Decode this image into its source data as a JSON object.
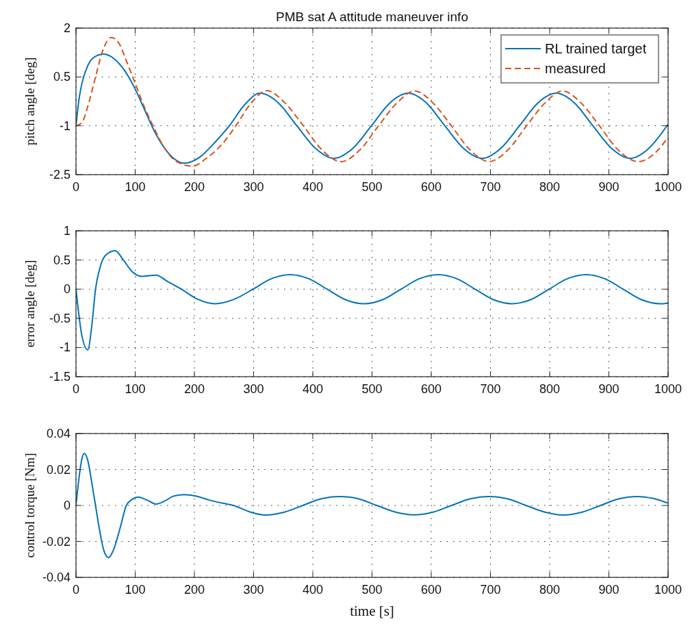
{
  "chart_data": [
    {
      "type": "line",
      "title": "PMB sat A attitude maneuver info",
      "ylabel": "pitch angle [deg]",
      "xlim": [
        0,
        1000
      ],
      "xticks": [
        0,
        100,
        200,
        300,
        400,
        500,
        600,
        700,
        800,
        900,
        1000
      ],
      "ylim": [
        -2.5,
        2
      ],
      "yticks": [
        -2.5,
        -1,
        0.5,
        2
      ],
      "grid": true,
      "legend": "top right",
      "series": [
        {
          "name": "RL trained target",
          "color": "#0072bd",
          "line_style": "solid",
          "x": [
            0,
            5,
            10,
            20,
            30,
            47,
            65,
            80,
            98,
            115,
            132,
            150,
            165,
            183,
            210,
            235,
            259,
            285,
            311,
            342,
            373,
            405,
            436,
            467,
            499,
            530,
            561,
            592,
            623,
            655,
            686,
            717,
            749,
            780,
            811,
            842,
            873,
            905,
            936,
            967,
            1000
          ],
          "values": [
            -1,
            -0.2,
            0.3,
            0.85,
            1.1,
            1.2,
            1.05,
            0.75,
            0.2,
            -0.47,
            -1.15,
            -1.7,
            -2,
            -2.15,
            -1.95,
            -1.5,
            -1,
            -0.35,
            0,
            -0.3,
            -1,
            -1.7,
            -2,
            -1.7,
            -1,
            -0.3,
            0,
            -0.3,
            -1,
            -1.7,
            -2,
            -1.7,
            -1,
            -0.3,
            0,
            -0.3,
            -1,
            -1.7,
            -2,
            -1.7,
            -0.95
          ]
        },
        {
          "name": "measured",
          "color": "#d95319",
          "line_style": "dashed",
          "x": [
            0,
            10,
            20,
            33,
            45,
            60,
            72,
            85,
            100,
            115,
            130,
            150,
            170,
            197,
            220,
            245,
            270,
            296,
            322,
            353,
            384,
            416,
            448,
            479,
            511,
            542,
            572,
            603,
            634,
            666,
            698,
            729,
            761,
            792,
            822,
            853,
            884,
            916,
            950,
            980,
            1000
          ],
          "values": [
            -1,
            -0.9,
            -0.4,
            0.5,
            1.3,
            1.71,
            1.55,
            1,
            0.3,
            -0.4,
            -1,
            -1.7,
            -2.1,
            -2.24,
            -2,
            -1.6,
            -1,
            -0.3,
            0.08,
            -0.3,
            -1,
            -1.75,
            -2.1,
            -1.75,
            -1,
            -0.3,
            0.07,
            -0.3,
            -1,
            -1.75,
            -2.1,
            -1.75,
            -1,
            -0.3,
            0.07,
            -0.3,
            -1,
            -1.75,
            -2.1,
            -1.8,
            -1.35
          ]
        }
      ]
    },
    {
      "type": "line",
      "ylabel": "error angle [deg]",
      "xlim": [
        0,
        1000
      ],
      "xticks": [
        0,
        100,
        200,
        300,
        400,
        500,
        600,
        700,
        800,
        900,
        1000
      ],
      "ylim": [
        -1.5,
        1
      ],
      "yticks": [
        -1.5,
        -1,
        -0.5,
        0,
        0.5,
        1
      ],
      "grid": true,
      "series": [
        {
          "color": "#0072bd",
          "x": [
            0,
            5,
            10,
            20,
            27,
            33,
            40,
            50,
            66,
            80,
            95,
            112,
            135,
            155,
            178,
            205,
            235,
            268,
            299,
            330,
            362,
            393,
            424,
            455,
            487,
            518,
            549,
            580,
            612,
            643,
            674,
            705,
            737,
            768,
            799,
            830,
            862,
            893,
            924,
            955,
            987,
            1000
          ],
          "values": [
            0,
            -0.45,
            -0.8,
            -1.04,
            -0.6,
            0,
            0.35,
            0.58,
            0.66,
            0.5,
            0.3,
            0.22,
            0.24,
            0.13,
            0,
            -0.17,
            -0.25,
            -0.17,
            0,
            0.18,
            0.25,
            0.18,
            0,
            -0.18,
            -0.25,
            -0.18,
            0,
            0.18,
            0.25,
            0.18,
            0,
            -0.18,
            -0.25,
            -0.18,
            0,
            0.18,
            0.25,
            0.18,
            0,
            -0.18,
            -0.25,
            -0.24
          ]
        }
      ]
    },
    {
      "type": "line",
      "ylabel": "control torque [Nm]",
      "xlabel": "time [s]",
      "xlim": [
        0,
        1000
      ],
      "xticks": [
        0,
        100,
        200,
        300,
        400,
        500,
        600,
        700,
        800,
        900,
        1000
      ],
      "ylim": [
        -0.04,
        0.04
      ],
      "yticks": [
        -0.04,
        -0.02,
        0,
        0.02,
        0.04
      ],
      "grid": true,
      "series": [
        {
          "color": "#0072bd",
          "x": [
            0,
            5,
            10,
            14,
            20,
            27,
            33,
            40,
            47,
            55,
            63,
            75,
            85,
            95,
            105,
            120,
            135,
            150,
            165,
            183,
            201,
            225,
            247,
            266,
            293,
            320,
            352,
            383,
            414,
            445,
            477,
            508,
            540,
            571,
            603,
            634,
            666,
            698,
            729,
            760,
            792,
            823,
            855,
            886,
            917,
            948,
            975,
            1000
          ],
          "values": [
            0,
            0.015,
            0.026,
            0.029,
            0.025,
            0.012,
            0,
            -0.014,
            -0.025,
            -0.029,
            -0.025,
            -0.012,
            0,
            0.0035,
            0.0047,
            0.003,
            0.0008,
            0.0025,
            0.0052,
            0.006,
            0.0053,
            0.003,
            0.0013,
            0,
            -0.0035,
            -0.0053,
            -0.0037,
            0,
            0.0037,
            0.005,
            0.0037,
            0,
            -0.0037,
            -0.0052,
            -0.0037,
            0,
            0.0037,
            0.005,
            0.0037,
            0,
            -0.0037,
            -0.0053,
            -0.0037,
            0,
            0.0037,
            0.005,
            0.0039,
            0.0013
          ]
        }
      ]
    }
  ]
}
